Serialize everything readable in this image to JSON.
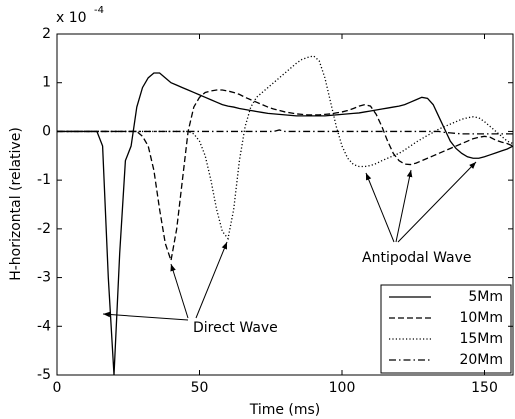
{
  "chart_data": {
    "type": "line",
    "xlabel": "Time (ms)",
    "ylabel": "H-horizontal (relative)",
    "y_multiplier": "x 10",
    "y_multiplier_exponent": "-4",
    "xlim": [
      0,
      160
    ],
    "xticks": [
      0,
      50,
      100,
      150
    ],
    "ylim": [
      -5,
      2
    ],
    "yticks": [
      -5,
      -4,
      -3,
      -2,
      -1,
      0,
      1,
      2
    ],
    "grid": false,
    "legend_position": "lower right",
    "annotations": [
      "Direct Wave",
      "Antipodal Wave"
    ],
    "x": [
      0,
      2,
      4,
      6,
      8,
      10,
      12,
      14,
      16,
      18,
      20,
      22,
      24,
      26,
      28,
      30,
      32,
      34,
      36,
      38,
      40,
      42,
      44,
      46,
      48,
      50,
      52,
      54,
      56,
      58,
      60,
      62,
      64,
      66,
      68,
      70,
      72,
      74,
      76,
      78,
      80,
      82,
      84,
      86,
      88,
      90,
      92,
      94,
      96,
      98,
      100,
      102,
      104,
      106,
      108,
      110,
      112,
      114,
      116,
      118,
      120,
      122,
      124,
      126,
      128,
      130,
      132,
      134,
      136,
      138,
      140,
      142,
      144,
      146,
      148,
      150,
      152,
      154,
      156,
      158,
      160
    ],
    "series": [
      {
        "name": "5Mm",
        "color": "#000000",
        "style": "solid",
        "values": [
          0,
          0,
          0,
          0,
          0,
          0,
          0,
          0,
          -0.3,
          -3.0,
          -5.0,
          -2.5,
          -0.6,
          -0.3,
          0.5,
          0.9,
          1.1,
          1.2,
          1.2,
          1.1,
          1.0,
          0.95,
          0.9,
          0.85,
          0.8,
          0.75,
          0.7,
          0.65,
          0.6,
          0.55,
          0.52,
          0.5,
          0.47,
          0.45,
          0.43,
          0.41,
          0.39,
          0.37,
          0.36,
          0.35,
          0.34,
          0.33,
          0.32,
          0.32,
          0.32,
          0.32,
          0.32,
          0.32,
          0.33,
          0.34,
          0.35,
          0.36,
          0.37,
          0.38,
          0.4,
          0.42,
          0.44,
          0.46,
          0.48,
          0.5,
          0.52,
          0.55,
          0.6,
          0.65,
          0.7,
          0.68,
          0.55,
          0.3,
          0.05,
          -0.2,
          -0.35,
          -0.45,
          -0.52,
          -0.55,
          -0.55,
          -0.52,
          -0.48,
          -0.44,
          -0.4,
          -0.36,
          -0.3
        ]
      },
      {
        "name": "10Mm",
        "color": "#000000",
        "style": "dashed",
        "values": [
          0,
          0,
          0,
          0,
          0,
          0,
          0,
          0,
          0,
          0,
          0,
          0,
          0,
          0,
          0,
          -0.1,
          -0.3,
          -0.8,
          -1.6,
          -2.3,
          -2.65,
          -2.0,
          -1.0,
          0.0,
          0.5,
          0.7,
          0.8,
          0.83,
          0.85,
          0.85,
          0.83,
          0.8,
          0.76,
          0.7,
          0.65,
          0.6,
          0.55,
          0.5,
          0.46,
          0.43,
          0.4,
          0.38,
          0.36,
          0.35,
          0.34,
          0.34,
          0.34,
          0.35,
          0.36,
          0.38,
          0.4,
          0.43,
          0.47,
          0.52,
          0.55,
          0.52,
          0.35,
          0.1,
          -0.2,
          -0.45,
          -0.6,
          -0.67,
          -0.68,
          -0.65,
          -0.6,
          -0.55,
          -0.5,
          -0.45,
          -0.4,
          -0.35,
          -0.3,
          -0.25,
          -0.2,
          -0.15,
          -0.12,
          -0.1,
          -0.12,
          -0.18,
          -0.22,
          -0.25,
          -0.3
        ]
      },
      {
        "name": "15Mm",
        "color": "#000000",
        "style": "dotted",
        "values": [
          0,
          0,
          0,
          0,
          0,
          0,
          0,
          0,
          0,
          0,
          0,
          0,
          0,
          0,
          0,
          0,
          0,
          0,
          0,
          0,
          0,
          0,
          0,
          0,
          -0.05,
          -0.2,
          -0.5,
          -1.0,
          -1.6,
          -2.05,
          -2.2,
          -1.6,
          -0.6,
          0.1,
          0.5,
          0.7,
          0.8,
          0.9,
          1.0,
          1.1,
          1.2,
          1.3,
          1.4,
          1.48,
          1.52,
          1.55,
          1.45,
          1.1,
          0.6,
          0.1,
          -0.3,
          -0.55,
          -0.68,
          -0.72,
          -0.72,
          -0.7,
          -0.66,
          -0.6,
          -0.55,
          -0.5,
          -0.45,
          -0.38,
          -0.3,
          -0.22,
          -0.15,
          -0.08,
          -0.02,
          0.05,
          0.1,
          0.15,
          0.2,
          0.25,
          0.28,
          0.3,
          0.28,
          0.2,
          0.1,
          0.0,
          -0.1,
          -0.2,
          -0.25
        ]
      },
      {
        "name": "20Mm",
        "color": "#000000",
        "style": "dashdot",
        "values": [
          0,
          0,
          0,
          0,
          0,
          0,
          0,
          0,
          0,
          0,
          0,
          0,
          0,
          0,
          0,
          0,
          0,
          0,
          0,
          0,
          0,
          0,
          0,
          0,
          0,
          0,
          0,
          0,
          0,
          0,
          0,
          0,
          0,
          0,
          0,
          0,
          0,
          0,
          0,
          0.03,
          0,
          0,
          0,
          0,
          0,
          0,
          0,
          0,
          0,
          0,
          0,
          0,
          0,
          0,
          0,
          0,
          0,
          0,
          0,
          0,
          0,
          0,
          0,
          0,
          0,
          0,
          0,
          0,
          -0.02,
          -0.03,
          -0.04,
          -0.05,
          -0.05,
          -0.05,
          -0.05,
          -0.05,
          -0.05,
          -0.05,
          -0.05,
          -0.05,
          -0.05
        ]
      }
    ]
  }
}
